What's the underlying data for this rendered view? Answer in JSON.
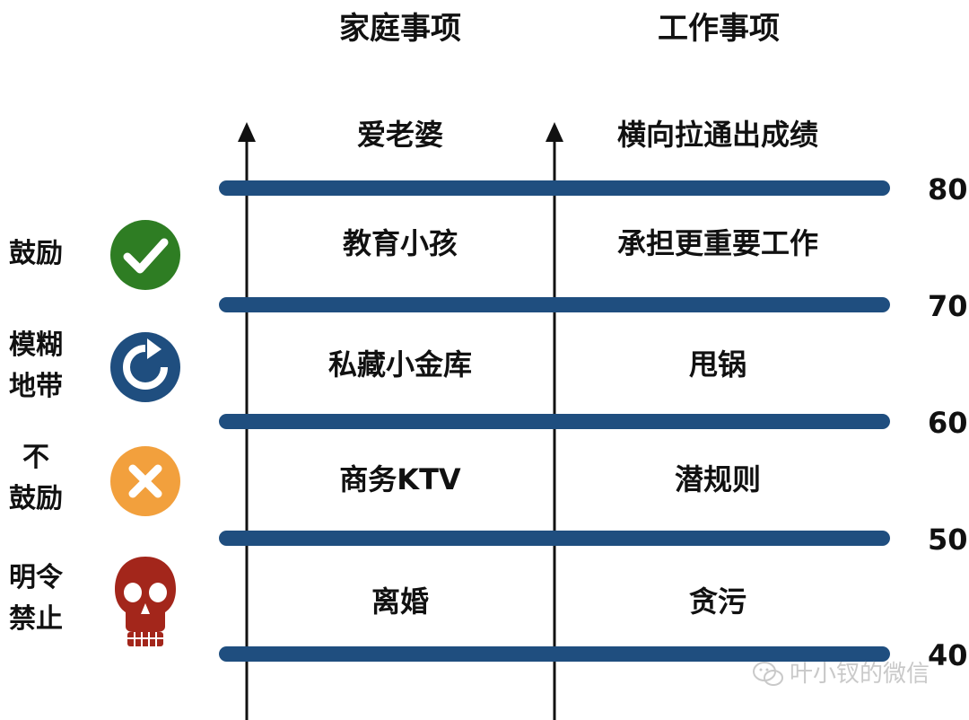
{
  "columns": {
    "family": "家庭事项",
    "work": "工作事项"
  },
  "rows": [
    {
      "family": "爱老婆",
      "work": "横向拉通出成绩"
    },
    {
      "family": "教育小孩",
      "work": "承担更重要工作"
    },
    {
      "family": "私藏小金库",
      "work": "甩锅"
    },
    {
      "family": "商务KTV",
      "work": "潜规则"
    },
    {
      "family": "离婚",
      "work": "贪污"
    }
  ],
  "scale": [
    "80",
    "70",
    "60",
    "50",
    "40"
  ],
  "levels": [
    {
      "label": "鼓励",
      "icon": "check-icon",
      "color": "#2e7d23"
    },
    {
      "label": "模糊地带",
      "icon": "refresh-icon",
      "color": "#1f4e7f"
    },
    {
      "label": "不鼓励",
      "icon": "cross-icon",
      "color": "#f2a03d"
    },
    {
      "label": "明令禁止",
      "icon": "skull-icon",
      "color": "#a3261b"
    }
  ],
  "levels_display": [
    [
      "鼓励"
    ],
    [
      "模糊",
      "地带"
    ],
    [
      "不",
      "鼓励"
    ],
    [
      "明令",
      "禁止"
    ]
  ],
  "colors": {
    "band": "#1f4e7f",
    "arrow": "#111111"
  },
  "watermark": "叶小钗的微信"
}
